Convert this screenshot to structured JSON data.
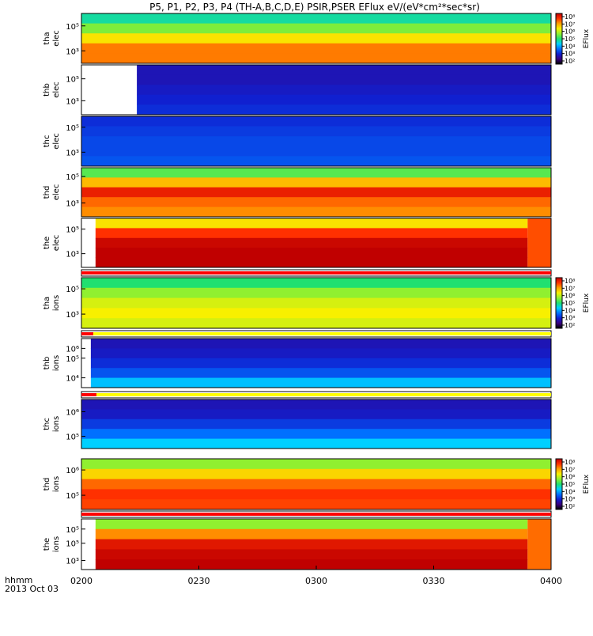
{
  "title": "P5, P1, P2, P3, P4 (TH-A,B,C,D,E) PSIR,PSER EFlux eV/(eV*cm²*sec*sr)",
  "time_axis": {
    "label_line1": "hhmm",
    "label_line2": "2013 Oct 03",
    "ticks": [
      "0200",
      "0230",
      "0300",
      "0330",
      "0400"
    ]
  },
  "colorbars": [
    {
      "label": "EFlux",
      "ticks": [
        "10⁸",
        "10⁷",
        "10⁶",
        "10⁵",
        "10⁴",
        "10³",
        "10²"
      ]
    },
    {
      "label": "EFlux",
      "ticks": [
        "10⁸",
        "10⁷",
        "10⁶",
        "10⁵",
        "10⁴",
        "10³",
        "10²"
      ]
    },
    {
      "label": "EFlux",
      "ticks": [
        "10⁸",
        "10⁷",
        "10⁶",
        "10⁵",
        "10⁴",
        "10³",
        "10²"
      ]
    }
  ],
  "colors": {
    "colormap": [
      "#000000",
      "#3a0080",
      "#1020d0",
      "#0070ff",
      "#00d0ff",
      "#20e070",
      "#90f030",
      "#f8f000",
      "#ffa000",
      "#ff3000",
      "#c00000"
    ],
    "gap_white": "#ffffff",
    "flag_red": "#ff0000",
    "flag_yellow": "#ffff00"
  },
  "chart_data": {
    "type": "heatmap",
    "x_unit": "hhmm",
    "x_range": [
      "0200",
      "0400"
    ],
    "colorbar_range_log10": [
      2,
      8
    ],
    "panels": [
      {
        "id": "tha-elec",
        "label_line1": "tha",
        "label_line2": "elec",
        "y_ticks": [
          {
            "text": "10⁵",
            "pos": 0.25
          },
          {
            "text": "10³",
            "pos": 0.75
          }
        ],
        "bands_log10_eflux": [
          4.8,
          5.5,
          6.3,
          7.0,
          7.0
        ],
        "data_start_frac": 0.0,
        "data_end_frac": 1.0
      },
      {
        "id": "thb-elec",
        "label_line1": "thb",
        "label_line2": "elec",
        "y_ticks": [
          {
            "text": "10⁵",
            "pos": 0.28
          },
          {
            "text": "10³",
            "pos": 0.72
          }
        ],
        "bands_log10_eflux": [
          3.0,
          3.0,
          3.1,
          3.2,
          3.3
        ],
        "data_start_frac": 0.118,
        "data_end_frac": 1.0
      },
      {
        "id": "thc-elec",
        "label_line1": "thc",
        "label_line2": "elec",
        "y_ticks": [
          {
            "text": "10⁵",
            "pos": 0.22
          },
          {
            "text": "10³",
            "pos": 0.72
          }
        ],
        "bands_log10_eflux": [
          3.3,
          3.4,
          3.5,
          3.5,
          3.6
        ],
        "data_start_frac": 0.0,
        "data_end_frac": 1.0
      },
      {
        "id": "thd-elec",
        "label_line1": "thd",
        "label_line2": "elec",
        "y_ticks": [
          {
            "text": "10⁵",
            "pos": 0.18
          },
          {
            "text": "10³",
            "pos": 0.72
          }
        ],
        "bands_log10_eflux": [
          5.3,
          6.6,
          7.6,
          7.1,
          6.9
        ],
        "data_start_frac": 0.0,
        "data_end_frac": 1.0
      },
      {
        "id": "the-elec",
        "label_line1": "the",
        "label_line2": "elec",
        "y_ticks": [
          {
            "text": "10⁵",
            "pos": 0.22
          },
          {
            "text": "10³",
            "pos": 0.72
          }
        ],
        "bands_log10_eflux": [
          6.3,
          7.4,
          7.9,
          8.0,
          8.0
        ],
        "data_start_frac": 0.03,
        "data_end_frac": 0.95
      },
      {
        "id": "tha-ions",
        "label_line1": "tha",
        "label_line2": "ions",
        "y_ticks": [
          {
            "text": "10⁵",
            "pos": 0.22
          },
          {
            "text": "10³",
            "pos": 0.72
          }
        ],
        "bands_log10_eflux": [
          5.0,
          5.6,
          6.0,
          6.2,
          6.0
        ],
        "data_start_frac": 0.0,
        "data_end_frac": 1.0
      },
      {
        "id": "thb-ions",
        "label_line1": "thb",
        "label_line2": "ions",
        "y_ticks": [
          {
            "text": "10⁶",
            "pos": 0.2
          },
          {
            "text": "10⁵",
            "pos": 0.4
          },
          {
            "text": "10⁴",
            "pos": 0.8
          }
        ],
        "bands_log10_eflux": [
          3.0,
          3.1,
          3.3,
          3.6,
          4.3
        ],
        "data_start_frac": 0.02,
        "data_end_frac": 1.0
      },
      {
        "id": "thc-ions",
        "label_line1": "thc",
        "label_line2": "ions",
        "y_ticks": [
          {
            "text": "10⁶",
            "pos": 0.25
          },
          {
            "text": "10⁵",
            "pos": 0.75
          }
        ],
        "bands_log10_eflux": [
          3.0,
          3.1,
          3.4,
          3.8,
          4.4
        ],
        "data_start_frac": 0.0,
        "data_end_frac": 1.0
      },
      {
        "id": "thd-ions",
        "label_line1": "thd",
        "label_line2": "ions",
        "y_ticks": [
          {
            "text": "10⁶",
            "pos": 0.22
          },
          {
            "text": "10⁵",
            "pos": 0.72
          }
        ],
        "bands_log10_eflux": [
          5.6,
          6.4,
          7.1,
          7.4,
          7.3
        ],
        "data_start_frac": 0.0,
        "data_end_frac": 1.0
      },
      {
        "id": "the-ions",
        "label_line1": "the",
        "label_line2": "ions",
        "y_ticks": [
          {
            "text": "10⁵",
            "pos": 0.2
          },
          {
            "text": "10⁵",
            "pos": 0.48
          },
          {
            "text": "10³",
            "pos": 0.82
          }
        ],
        "bands_log10_eflux": [
          5.6,
          6.9,
          7.7,
          7.9,
          8.0
        ],
        "data_start_frac": 0.03,
        "data_end_frac": 0.95
      }
    ]
  }
}
